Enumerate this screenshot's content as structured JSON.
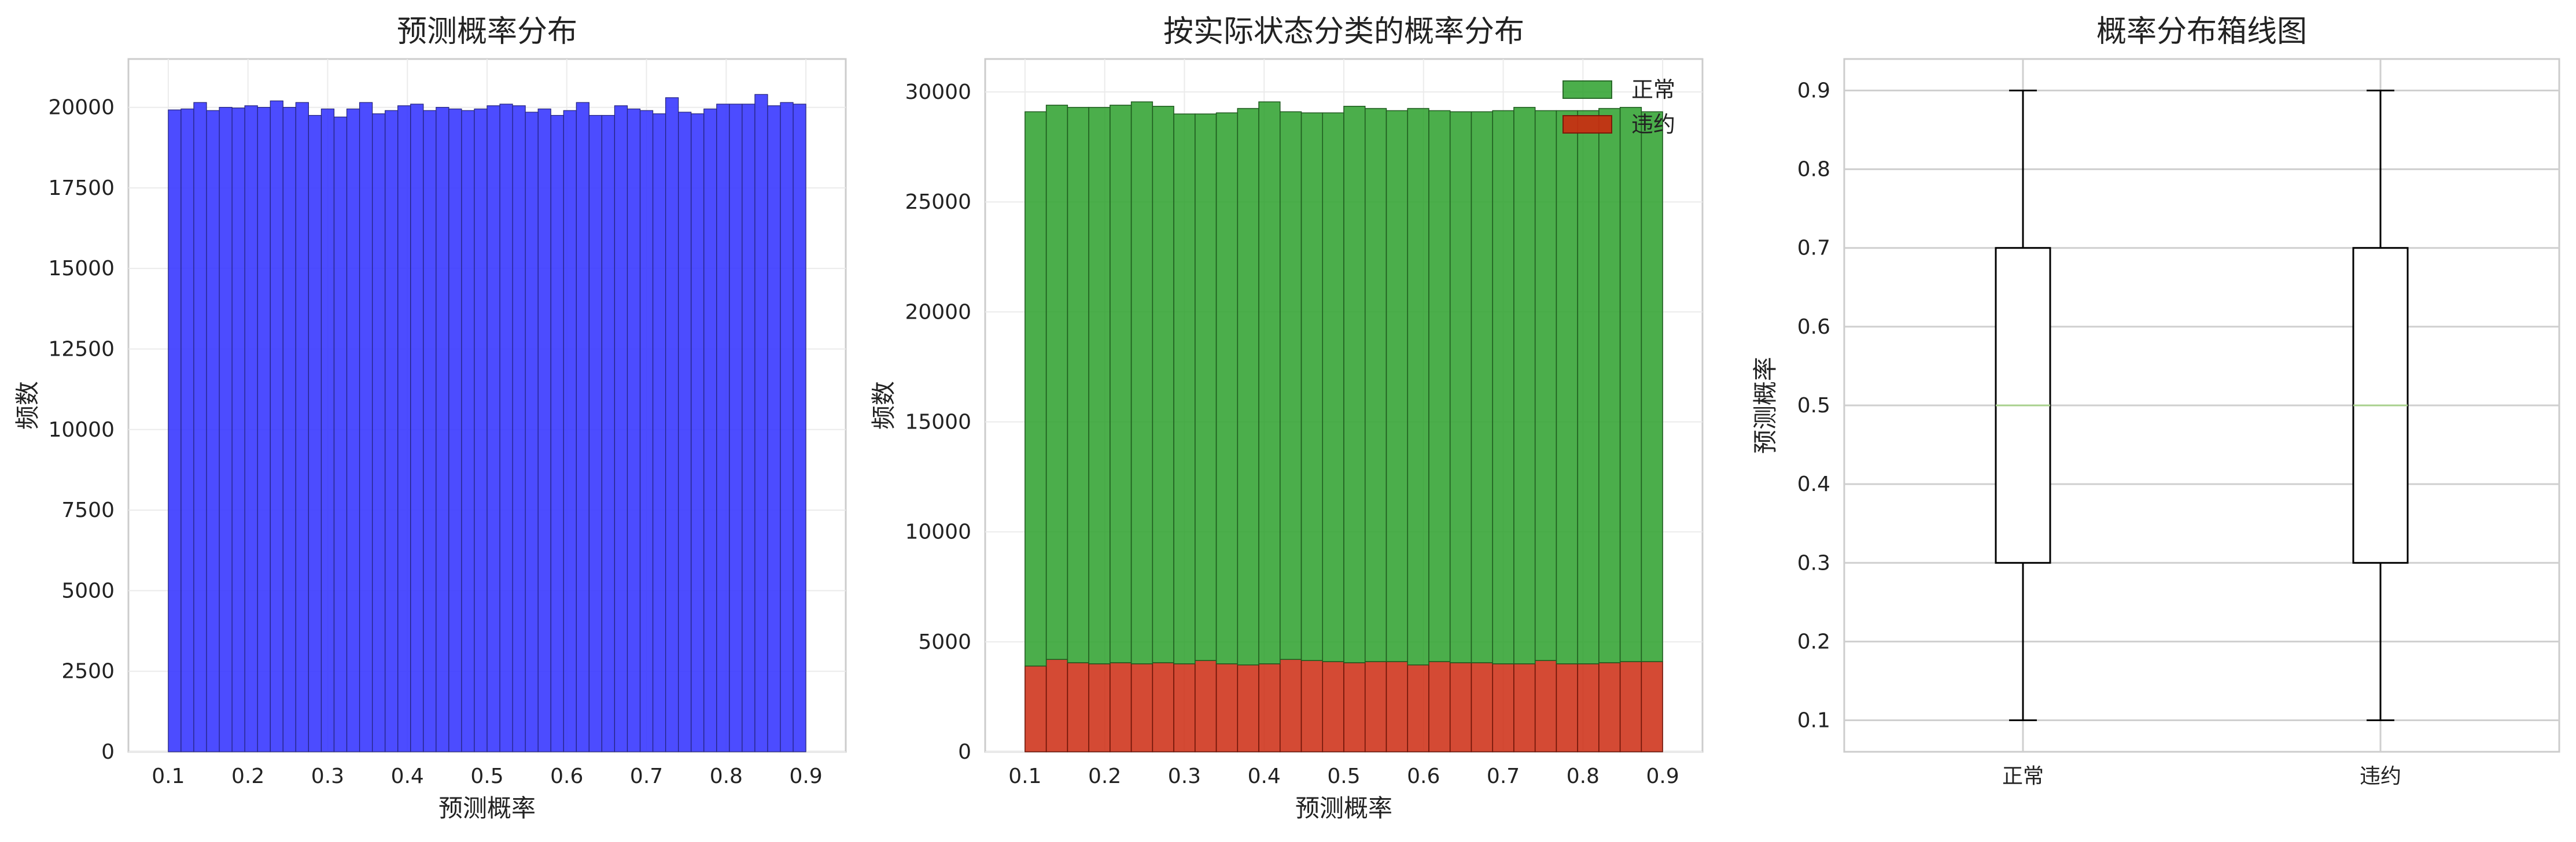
{
  "chart_data": [
    {
      "type": "bar",
      "title": "预测概率分布",
      "xlabel": "预测概率",
      "ylabel": "频数",
      "xlim": [
        0.05,
        0.95
      ],
      "ylim": [
        0,
        21500
      ],
      "xticks": [
        "0.1",
        "0.2",
        "0.3",
        "0.4",
        "0.5",
        "0.6",
        "0.7",
        "0.8",
        "0.9"
      ],
      "yticks": [
        "0",
        "2500",
        "5000",
        "7500",
        "10000",
        "12500",
        "15000",
        "17500",
        "20000"
      ],
      "grid": true,
      "bin_range": [
        0.1,
        0.9
      ],
      "color": "#3333ff",
      "values": [
        19920,
        19950,
        20150,
        19900,
        20000,
        19980,
        20050,
        20000,
        20200,
        20000,
        20150,
        19750,
        19950,
        19700,
        19950,
        20150,
        19800,
        19900,
        20050,
        20100,
        19900,
        20000,
        19950,
        19900,
        19950,
        20050,
        20100,
        20050,
        19850,
        19950,
        19750,
        19900,
        20150,
        19750,
        19750,
        20050,
        19950,
        19900,
        19800,
        20300,
        19850,
        19800,
        19950,
        20100,
        20100,
        20100,
        20400,
        20050,
        20150,
        20100
      ]
    },
    {
      "type": "bar",
      "stacked": true,
      "title": "按实际状态分类的概率分布",
      "xlabel": "预测概率",
      "ylabel": "频数",
      "xlim": [
        0.05,
        0.95
      ],
      "ylim": [
        0,
        31500
      ],
      "xticks": [
        "0.1",
        "0.2",
        "0.3",
        "0.4",
        "0.5",
        "0.6",
        "0.7",
        "0.8",
        "0.9"
      ],
      "yticks": [
        "0",
        "5000",
        "10000",
        "15000",
        "20000",
        "25000",
        "30000"
      ],
      "grid": true,
      "legend_position": "top-right",
      "bin_range": [
        0.1,
        0.9
      ],
      "series": [
        {
          "name": "违约",
          "color": "#cc2a10",
          "values": [
            3900,
            4200,
            4050,
            4000,
            4050,
            4000,
            4050,
            4000,
            4150,
            4000,
            3950,
            4000,
            4200,
            4150,
            4100,
            4050,
            4100,
            4100,
            3950,
            4100,
            4050,
            4050,
            4000,
            4000,
            4150,
            4000,
            4000,
            4050,
            4100,
            4100
          ]
        },
        {
          "name": "正常",
          "color": "#2ca02c",
          "values": [
            25200,
            25200,
            25250,
            25300,
            25350,
            25550,
            25300,
            25000,
            24850,
            25050,
            25300,
            25550,
            24900,
            24900,
            24950,
            25300,
            25150,
            25050,
            25300,
            25050,
            25050,
            25050,
            25150,
            25300,
            25000,
            25150,
            25150,
            25200,
            25200,
            25000
          ]
        }
      ]
    },
    {
      "type": "boxplot",
      "title": "概率分布箱线图",
      "ylabel": "预测概率",
      "ylim": [
        0.06,
        0.94
      ],
      "yticks": [
        "0.1",
        "0.2",
        "0.3",
        "0.4",
        "0.5",
        "0.6",
        "0.7",
        "0.8",
        "0.9"
      ],
      "grid": true,
      "categories": [
        "正常",
        "违约"
      ],
      "boxes": [
        {
          "whislo": 0.1,
          "q1": 0.3,
          "med": 0.5,
          "q3": 0.7,
          "whishi": 0.9
        },
        {
          "whislo": 0.1,
          "q1": 0.3,
          "med": 0.5,
          "q3": 0.7,
          "whishi": 0.9
        }
      ]
    }
  ]
}
